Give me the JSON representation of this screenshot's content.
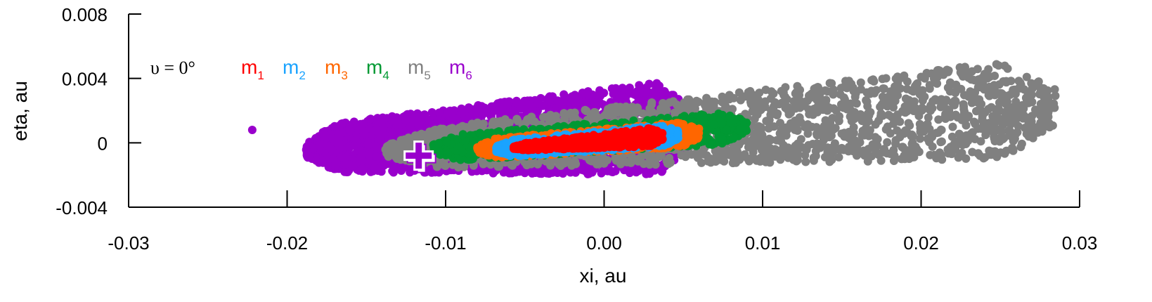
{
  "chart_data": {
    "type": "scatter",
    "title": "",
    "xlabel": "xi, au",
    "ylabel": "eta, au",
    "xlim": [
      -0.03,
      0.03
    ],
    "ylim": [
      -0.004,
      0.008
    ],
    "xticks": [
      -0.03,
      -0.02,
      -0.01,
      0.0,
      0.01,
      0.02,
      0.03
    ],
    "xtick_labels": [
      "-0.03",
      "-0.02",
      "-0.01",
      "0.00",
      "0.01",
      "0.02",
      "0.03"
    ],
    "yticks": [
      -0.004,
      0,
      0.004,
      0.008
    ],
    "ytick_labels": [
      "-0.004",
      "0",
      "0.004",
      "0.008"
    ],
    "annotation": "υ = 0°",
    "legend_placement": "top-left",
    "grid": false,
    "series": [
      {
        "name": "m",
        "subscript": "6",
        "color": "#9900cc",
        "cloud": {
          "x_range": [
            -0.0188,
            0.0055
          ],
          "y_center_start": -0.0004,
          "y_center_end": 0.001,
          "y_half_start": 0.0014,
          "y_half_end": 0.003,
          "count": 2200
        },
        "points": [
          [
            -0.0222,
            0.0008
          ]
        ]
      },
      {
        "name": "m",
        "subscript": "5",
        "color": "#808080",
        "cloud": {
          "x_range": [
            -0.0138,
            0.0285
          ],
          "y_center_start": -0.0005,
          "y_center_end": 0.0022,
          "y_half_start": 0.0011,
          "y_half_end": 0.0032,
          "count": 1900
        },
        "points": []
      },
      {
        "name": "m",
        "subscript": "4",
        "color": "#009933",
        "cloud": {
          "x_range": [
            -0.0108,
            0.009
          ],
          "y_center_start": -0.0004,
          "y_center_end": 0.001,
          "y_half_start": 0.0008,
          "y_half_end": 0.001,
          "count": 900
        },
        "points": []
      },
      {
        "name": "m",
        "subscript": "3",
        "color": "#ff6600",
        "cloud": {
          "x_range": [
            -0.008,
            0.006
          ],
          "y_center_start": -0.0004,
          "y_center_end": 0.0006,
          "y_half_start": 0.0006,
          "y_half_end": 0.0008,
          "count": 700
        },
        "points": []
      },
      {
        "name": "m",
        "subscript": "2",
        "color": "#1aa3ff",
        "cloud": {
          "x_range": [
            -0.0068,
            0.0047
          ],
          "y_center_start": -0.0004,
          "y_center_end": 0.0005,
          "y_half_start": 0.0005,
          "y_half_end": 0.0007,
          "count": 600
        },
        "points": []
      },
      {
        "name": "m",
        "subscript": "1",
        "color": "#ff0000",
        "cloud": {
          "x_range": [
            -0.0057,
            0.0037
          ],
          "y_center_start": -0.0003,
          "y_center_end": 0.0004,
          "y_half_start": 0.0002,
          "y_half_end": 0.0006,
          "count": 600
        },
        "points": []
      }
    ],
    "marker": {
      "shape": "cross",
      "x": -0.0117,
      "y": -0.0008,
      "color": "#9900cc"
    }
  }
}
